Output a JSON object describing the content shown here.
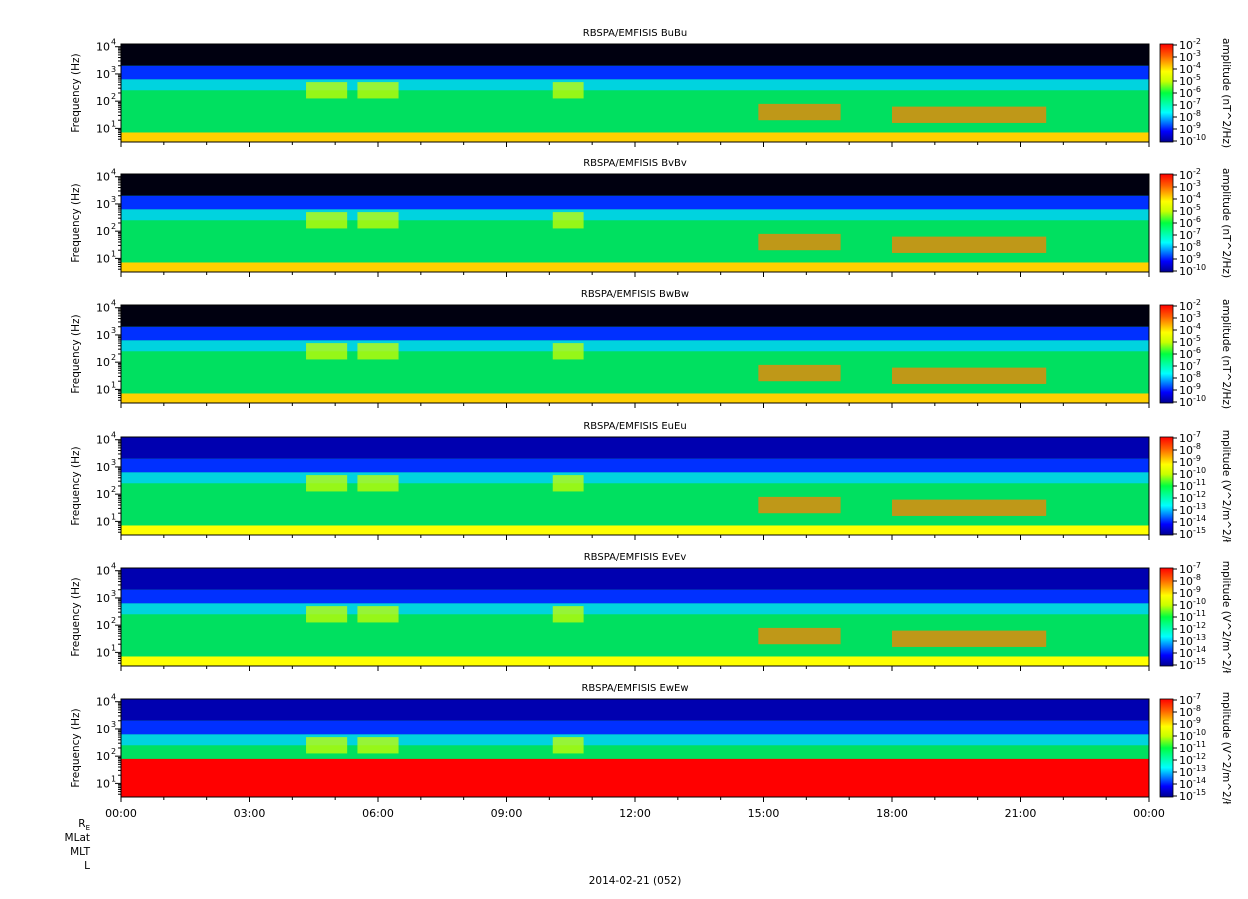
{
  "chart_data": [
    {
      "type": "heatmap",
      "title": "RBSPA/EMFISIS  BuBu",
      "ylabel": "Frequency (Hz)",
      "yscale": "log",
      "yticks": [
        "10",
        "10",
        "10",
        "10"
      ],
      "ytick_exponents": [
        "1",
        "2",
        "3",
        "4"
      ],
      "colorbar_label": "amplitude (nT^2/Hz)",
      "colorbar_scale": "log",
      "colorbar_exponents": [
        "-2",
        "-3",
        "-4",
        "-5",
        "-6",
        "-7",
        "-8",
        "-9",
        "-10"
      ],
      "field": "B"
    },
    {
      "type": "heatmap",
      "title": "RBSPA/EMFISIS  BvBv",
      "ylabel": "Frequency (Hz)",
      "yscale": "log",
      "yticks": [
        "10",
        "10",
        "10",
        "10"
      ],
      "ytick_exponents": [
        "1",
        "2",
        "3",
        "4"
      ],
      "colorbar_label": "amplitude (nT^2/Hz)",
      "colorbar_scale": "log",
      "colorbar_exponents": [
        "-2",
        "-3",
        "-4",
        "-5",
        "-6",
        "-7",
        "-8",
        "-9",
        "-10"
      ],
      "field": "B"
    },
    {
      "type": "heatmap",
      "title": "RBSPA/EMFISIS  BwBw",
      "ylabel": "Frequency (Hz)",
      "yscale": "log",
      "yticks": [
        "10",
        "10",
        "10",
        "10"
      ],
      "ytick_exponents": [
        "1",
        "2",
        "3",
        "4"
      ],
      "colorbar_label": "amplitude (nT^2/Hz)",
      "colorbar_scale": "log",
      "colorbar_exponents": [
        "-2",
        "-3",
        "-4",
        "-5",
        "-6",
        "-7",
        "-8",
        "-9",
        "-10"
      ],
      "field": "B"
    },
    {
      "type": "heatmap",
      "title": "RBSPA/EMFISIS  EuEu",
      "ylabel": "Frequency (Hz)",
      "yscale": "log",
      "yticks": [
        "10",
        "10",
        "10",
        "10"
      ],
      "ytick_exponents": [
        "1",
        "2",
        "3",
        "4"
      ],
      "colorbar_label": "mplitude (V^2/m^2/ł",
      "colorbar_scale": "log",
      "colorbar_exponents": [
        "-7",
        "-8",
        "-9",
        "-10",
        "-11",
        "-12",
        "-13",
        "-14",
        "-15"
      ],
      "field": "E"
    },
    {
      "type": "heatmap",
      "title": "RBSPA/EMFISIS  EvEv",
      "ylabel": "Frequency (Hz)",
      "yscale": "log",
      "yticks": [
        "10",
        "10",
        "10",
        "10"
      ],
      "ytick_exponents": [
        "1",
        "2",
        "3",
        "4"
      ],
      "colorbar_label": "mplitude (V^2/m^2/ł",
      "colorbar_scale": "log",
      "colorbar_exponents": [
        "-7",
        "-8",
        "-9",
        "-10",
        "-11",
        "-12",
        "-13",
        "-14",
        "-15"
      ],
      "field": "E"
    },
    {
      "type": "heatmap",
      "title": "RBSPA/EMFISIS  EwEw",
      "ylabel": "Frequency (Hz)",
      "yscale": "log",
      "yticks": [
        "10",
        "10",
        "10",
        "10"
      ],
      "ytick_exponents": [
        "1",
        "2",
        "3",
        "4"
      ],
      "colorbar_label": "mplitude (V^2/m^2/ł",
      "colorbar_scale": "log",
      "colorbar_exponents": [
        "-7",
        "-8",
        "-9",
        "-10",
        "-11",
        "-12",
        "-13",
        "-14",
        "-15"
      ],
      "field": "Ew"
    }
  ],
  "xaxis": {
    "ticks": [
      "00:00",
      "03:00",
      "06:00",
      "09:00",
      "12:00",
      "15:00",
      "18:00",
      "21:00",
      "00:00"
    ],
    "minor_per_major": 3
  },
  "ephemeris_labels": [
    "R",
    "MLat",
    "MLT",
    "L"
  ],
  "re_subscript": "E",
  "date_label": "2014-02-21 (052)"
}
